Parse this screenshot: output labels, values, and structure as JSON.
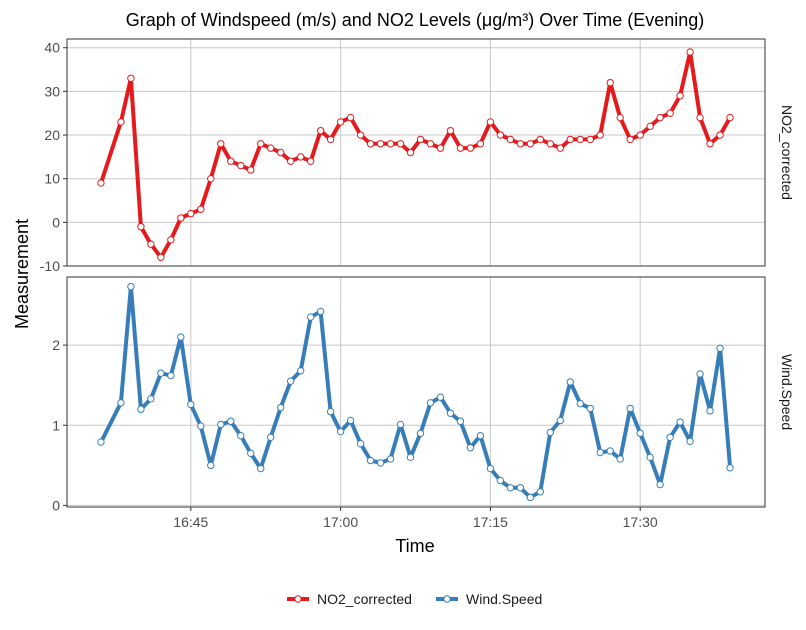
{
  "chart_data": {
    "type": "line",
    "title": "Graph of Windspeed (m/s) and NO2 Levels (μg/m³) Over Time (Evening)",
    "xlabel": "Time",
    "ylabel": "Measurement",
    "x_ticks": [
      {
        "label": "16:45",
        "value": 9
      },
      {
        "label": "17:00",
        "value": 24
      },
      {
        "label": "17:15",
        "value": 39
      },
      {
        "label": "17:30",
        "value": 54
      }
    ],
    "x_range": [
      -3.4,
      66.5
    ],
    "grid": true,
    "legend": "bottom",
    "panels": [
      {
        "name": "NO2_corrected",
        "y_range": [
          -10,
          42
        ],
        "y_ticks": [
          -10,
          0,
          10,
          20,
          30,
          40
        ]
      },
      {
        "name": "Wind.Speed",
        "y_range": [
          -0.02,
          2.85
        ],
        "y_ticks": [
          0,
          1,
          2
        ]
      }
    ],
    "series": [
      {
        "name": "NO2_corrected",
        "color": "#e41a1c",
        "panel": 0,
        "x": [
          0,
          2,
          3,
          4,
          5,
          6,
          7,
          8,
          9,
          10,
          11,
          12,
          13,
          14,
          15,
          16,
          17,
          18,
          19,
          20,
          21,
          22,
          23,
          24,
          25,
          26,
          27,
          28,
          29,
          30,
          31,
          32,
          33,
          34,
          35,
          36,
          37,
          38,
          39,
          40,
          41,
          42,
          43,
          44,
          45,
          46,
          47,
          48,
          49,
          50,
          51,
          52,
          53,
          54,
          55,
          56,
          57,
          58,
          59,
          60,
          61,
          62,
          63
        ],
        "values": [
          9,
          23,
          33,
          -1,
          -5,
          -8,
          -4,
          1,
          2,
          3,
          10,
          18,
          14,
          13,
          12,
          18,
          17,
          16,
          14,
          15,
          14,
          21,
          19,
          23,
          24,
          20,
          18,
          18,
          18,
          18,
          16,
          19,
          18,
          17,
          21,
          17,
          17,
          18,
          23,
          20,
          19,
          18,
          18,
          19,
          18,
          17,
          19,
          19,
          19,
          20,
          32,
          24,
          19,
          20,
          22,
          24,
          25,
          29,
          39,
          24,
          18,
          20,
          24
        ]
      },
      {
        "name": "Wind.Speed",
        "color": "#377eb8",
        "panel": 1,
        "x": [
          0,
          2,
          3,
          4,
          5,
          6,
          7,
          8,
          9,
          10,
          11,
          12,
          13,
          14,
          15,
          16,
          17,
          18,
          19,
          20,
          21,
          22,
          23,
          24,
          25,
          26,
          27,
          28,
          29,
          30,
          31,
          32,
          33,
          34,
          35,
          36,
          37,
          38,
          39,
          40,
          41,
          42,
          43,
          44,
          45,
          46,
          47,
          48,
          49,
          50,
          51,
          52,
          53,
          54,
          55,
          56,
          57,
          58,
          59,
          60,
          61,
          62,
          63
        ],
        "values": [
          0.79,
          1.28,
          2.73,
          1.2,
          1.33,
          1.65,
          1.62,
          2.1,
          1.26,
          0.99,
          0.5,
          1.01,
          1.05,
          0.87,
          0.65,
          0.46,
          0.85,
          1.22,
          1.55,
          1.68,
          2.35,
          2.42,
          1.17,
          0.92,
          1.06,
          0.77,
          0.56,
          0.53,
          0.58,
          1.01,
          0.6,
          0.9,
          1.28,
          1.35,
          1.15,
          1.05,
          0.72,
          0.87,
          0.46,
          0.31,
          0.22,
          0.22,
          0.1,
          0.17,
          0.91,
          1.06,
          1.54,
          1.27,
          1.21,
          0.66,
          0.68,
          0.58,
          1.21,
          0.9,
          0.6,
          0.26,
          0.85,
          1.04,
          0.8,
          1.64,
          1.18,
          1.96,
          0.47
        ]
      }
    ]
  }
}
